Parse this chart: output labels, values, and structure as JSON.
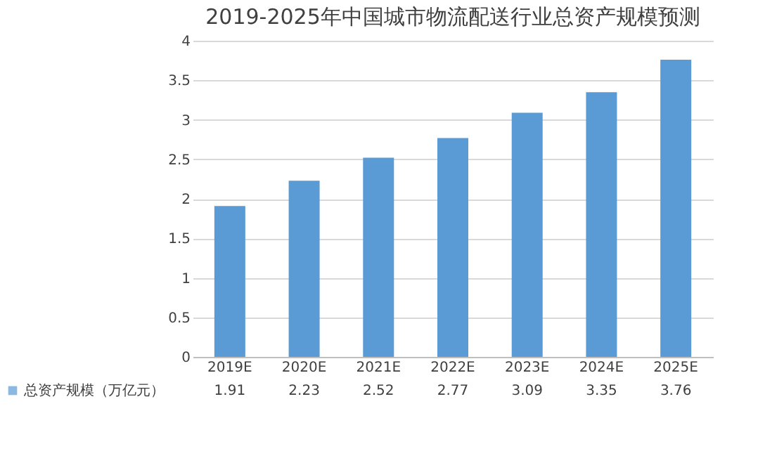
{
  "chart_data": {
    "type": "bar",
    "title": "2019-2025年中国城市物流配送行业总资产规模预测",
    "categories": [
      "2019E",
      "2020E",
      "2021E",
      "2022E",
      "2023E",
      "2024E",
      "2025E"
    ],
    "series": [
      {
        "name": "总资产规模（万亿元）",
        "color": "#5b9bd5",
        "values": [
          1.91,
          2.23,
          2.52,
          2.77,
          3.09,
          3.35,
          3.76
        ]
      }
    ],
    "ylim": [
      0,
      4
    ],
    "yticks": [
      0,
      0.5,
      1,
      1.5,
      2,
      2.5,
      3,
      3.5,
      4
    ],
    "grid": "y",
    "data_labels": true,
    "legend": "bottom"
  }
}
